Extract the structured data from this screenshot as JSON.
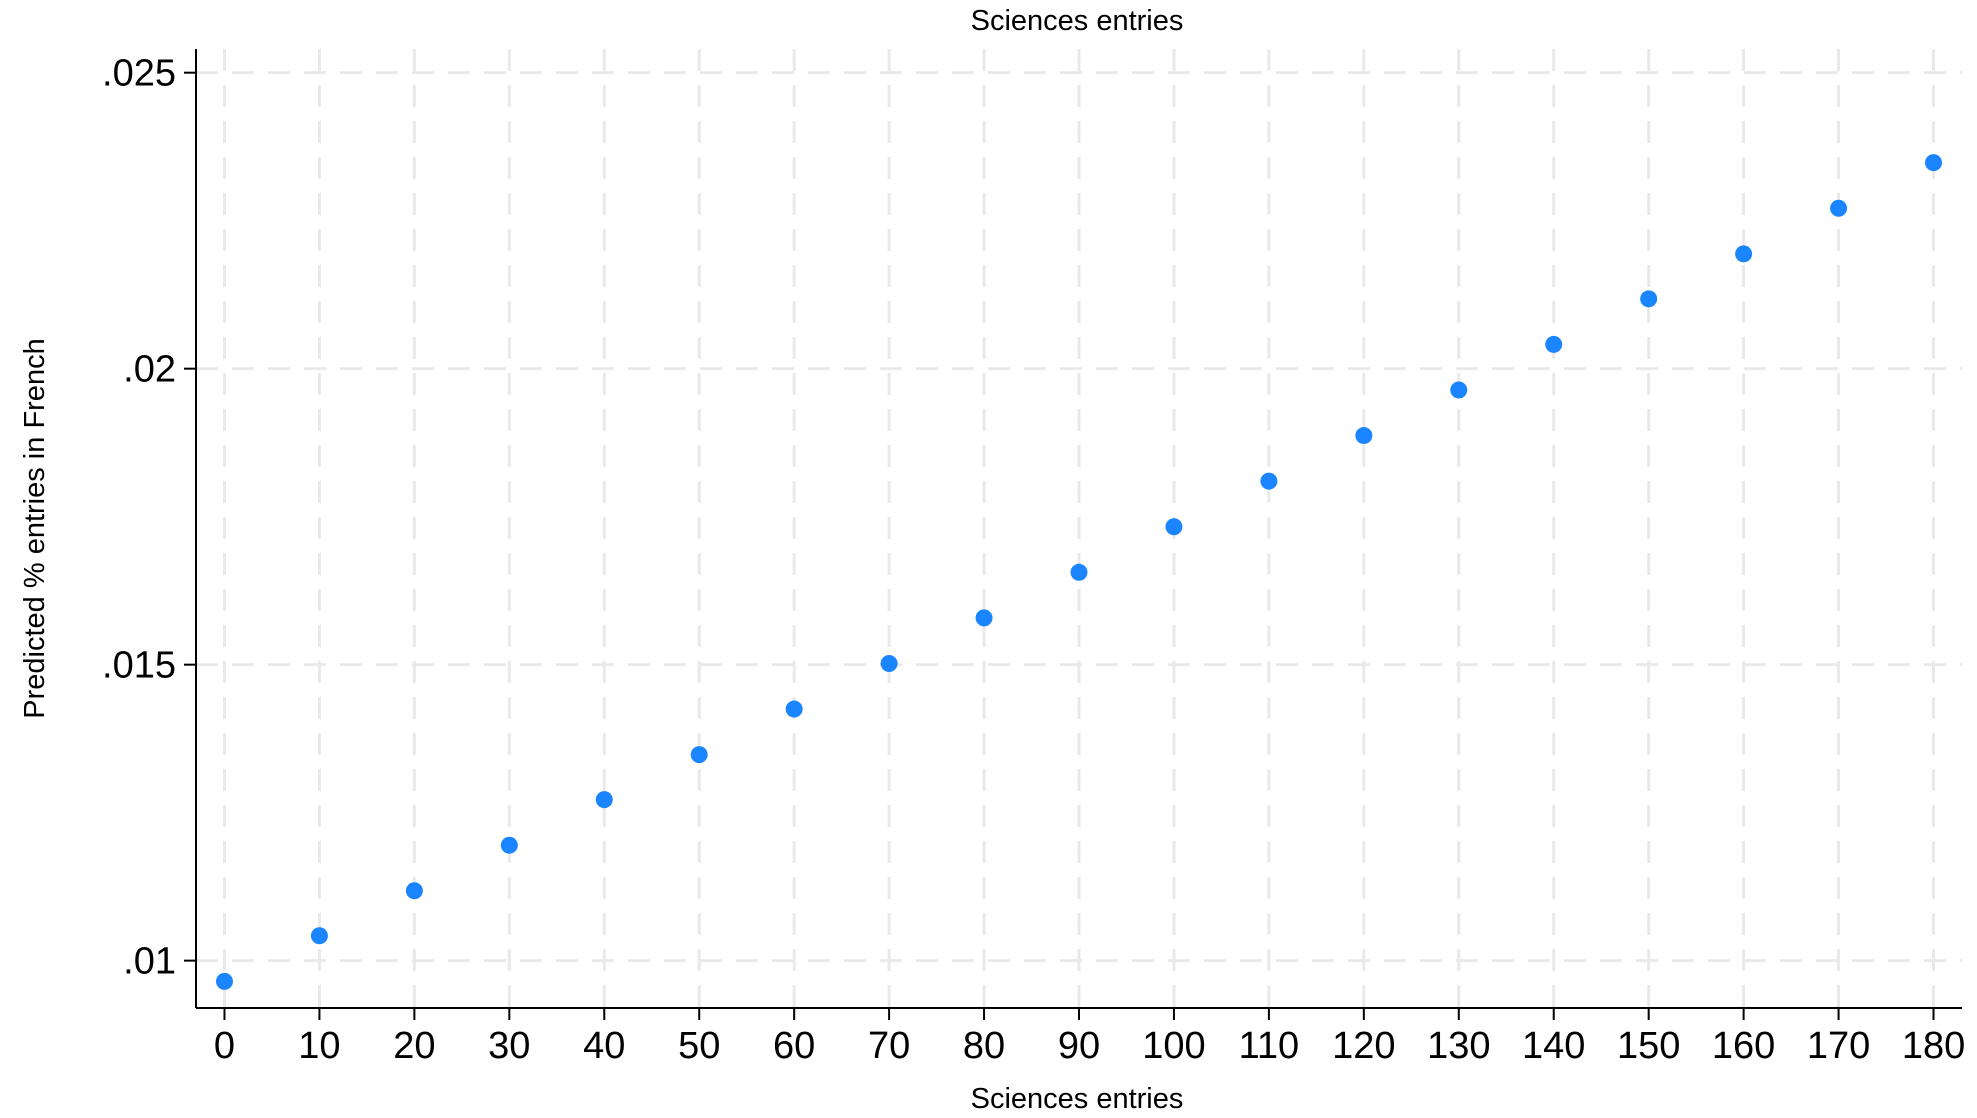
{
  "chart_data": {
    "type": "scatter",
    "title": "Sciences entries",
    "xlabel": "Sciences entries",
    "ylabel": "Predicted % entries in French",
    "xlim": [
      -3,
      183
    ],
    "ylim": [
      0.0092,
      0.0254
    ],
    "x_ticks": [
      0,
      10,
      20,
      30,
      40,
      50,
      60,
      70,
      80,
      90,
      100,
      110,
      120,
      130,
      140,
      150,
      160,
      170,
      180
    ],
    "x_tick_labels": [
      "0",
      "10",
      "20",
      "30",
      "40",
      "50",
      "60",
      "70",
      "80",
      "90",
      "100",
      "110",
      "120",
      "130",
      "140",
      "150",
      "160",
      "170",
      "180"
    ],
    "y_ticks": [
      0.01,
      0.015,
      0.02,
      0.025
    ],
    "y_tick_labels": [
      ".01",
      ".015",
      ".02",
      ".025"
    ],
    "grid": true,
    "marker_color": "#1a85ff",
    "series": [
      {
        "x": [
          0,
          10,
          20,
          30,
          40,
          50,
          60,
          70,
          80,
          90,
          100,
          110,
          120,
          130,
          140,
          150,
          160,
          170,
          180
        ],
        "y": [
          0.00965,
          0.01042,
          0.01118,
          0.01195,
          0.01272,
          0.01348,
          0.01425,
          0.01502,
          0.01579,
          0.01656,
          0.01733,
          0.0181,
          0.01887,
          0.01964,
          0.02041,
          0.02118,
          0.02194,
          0.02271,
          0.02348
        ]
      }
    ]
  }
}
